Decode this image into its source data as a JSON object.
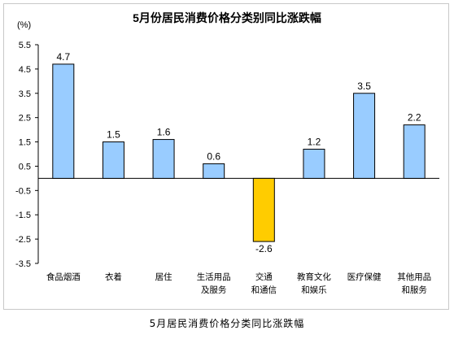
{
  "chart_data": {
    "type": "bar",
    "title": "5月份居民消费价格分类别同比涨跌幅",
    "unit_label": "(%)",
    "categories": [
      [
        "食品烟酒"
      ],
      [
        "衣着"
      ],
      [
        "居住"
      ],
      [
        "生活用品",
        "及服务"
      ],
      [
        "交通",
        "和通信"
      ],
      [
        "教育文化",
        "和娱乐"
      ],
      [
        "医疗保健"
      ],
      [
        "其他用品",
        "和服务"
      ]
    ],
    "values": [
      4.7,
      1.5,
      1.6,
      0.6,
      -2.6,
      1.2,
      3.5,
      2.2
    ],
    "value_labels": [
      "4.7",
      "1.5",
      "1.6",
      "0.6",
      "-2.6",
      "1.2",
      "3.5",
      "2.2"
    ],
    "ylim": [
      -3.5,
      5.5
    ],
    "yticks": [
      5.5,
      4.5,
      3.5,
      2.5,
      1.5,
      0.5,
      -0.5,
      -1.5,
      -2.5,
      -3.5
    ],
    "ytick_labels": [
      "5.5",
      "4.5",
      "3.5",
      "2.5",
      "1.5",
      "0.5",
      "-0.5",
      "-1.5",
      "-2.5",
      "-3.5"
    ],
    "grid": false,
    "legend": "none",
    "colors": {
      "positive_fill": "#99CCFF",
      "negative_fill": "#FFCC00",
      "bar_stroke": "#000000",
      "axis": "#000000"
    }
  },
  "caption": "5月居民消费价格分类同比涨跌幅"
}
